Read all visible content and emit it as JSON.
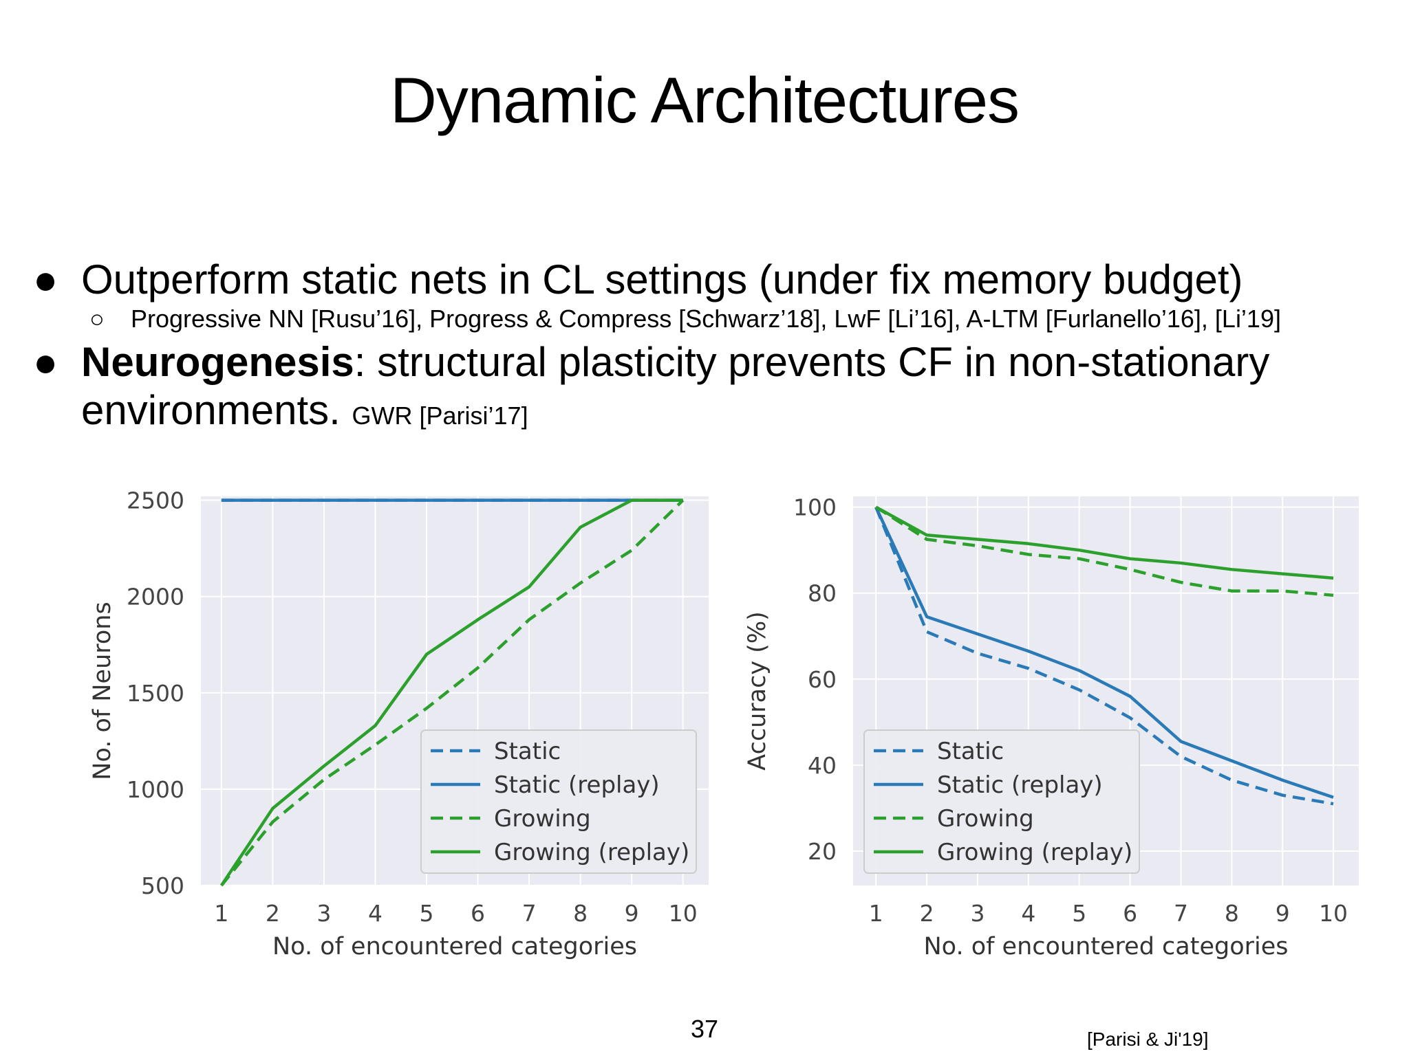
{
  "slide": {
    "title": "Dynamic Architectures",
    "bullets": [
      {
        "marker": "●",
        "text": "Outperform static nets in CL settings (under fix memory budget)"
      },
      {
        "marker": "●",
        "bold": "Neurogenesis",
        "text": ": structural plasticity prevents CF in non-stationary",
        "line2": "environments.",
        "line2_small": "GWR [Parisi’17]"
      }
    ],
    "sub_bullet": {
      "marker": "○",
      "text": "Progressive NN [Rusu’16], Progress & Compress [Schwarz’18], LwF [Li’16], A-LTM [Furlanello’16], [Li’19]"
    },
    "page_number": "37",
    "citation": "[Parisi & Ji'19]"
  },
  "colors": {
    "blue": "#2a7ab8",
    "green": "#2ca02c",
    "plot_bg": "#eaeaf2",
    "grid": "#ffffff"
  },
  "chart_data": [
    {
      "type": "line",
      "title": "",
      "xlabel": "No. of encountered categories",
      "ylabel": "No. of Neurons",
      "x": [
        1,
        2,
        3,
        4,
        5,
        6,
        7,
        8,
        9,
        10
      ],
      "xlim": [
        0.6,
        10.5
      ],
      "ylim": [
        500,
        2520
      ],
      "yticks": [
        500,
        1000,
        1500,
        2000,
        2500
      ],
      "legend": "lower-right",
      "series": [
        {
          "name": "Static",
          "style": "dashed",
          "color": "blue",
          "values": [
            2500,
            2500,
            2500,
            2500,
            2500,
            2500,
            2500,
            2500,
            2500,
            2500
          ]
        },
        {
          "name": "Static (replay)",
          "style": "solid",
          "color": "blue",
          "values": [
            2500,
            2500,
            2500,
            2500,
            2500,
            2500,
            2500,
            2500,
            2500,
            2500
          ]
        },
        {
          "name": "Growing",
          "style": "dashed",
          "color": "green",
          "values": [
            500,
            830,
            1050,
            1230,
            1420,
            1630,
            1880,
            2070,
            2240,
            2500
          ]
        },
        {
          "name": "Growing (replay)",
          "style": "solid",
          "color": "green",
          "values": [
            500,
            900,
            1120,
            1330,
            1700,
            1880,
            2050,
            2360,
            2500,
            2500
          ]
        }
      ]
    },
    {
      "type": "line",
      "title": "",
      "xlabel": "No. of encountered categories",
      "ylabel": "Accuracy (%)",
      "x": [
        1,
        2,
        3,
        4,
        5,
        6,
        7,
        8,
        9,
        10
      ],
      "xlim": [
        0.55,
        10.5
      ],
      "ylim": [
        12,
        102.5
      ],
      "yticks": [
        20,
        40,
        60,
        80,
        100
      ],
      "legend": "lower-left",
      "series": [
        {
          "name": "Static",
          "style": "dashed",
          "color": "blue",
          "values": [
            100,
            71,
            66,
            62.5,
            57.5,
            51,
            42,
            36.5,
            33,
            31
          ]
        },
        {
          "name": "Static (replay)",
          "style": "solid",
          "color": "blue",
          "values": [
            100,
            74.5,
            70.5,
            66.5,
            62,
            56,
            45.5,
            41,
            36.5,
            32.5
          ]
        },
        {
          "name": "Growing",
          "style": "dashed",
          "color": "green",
          "values": [
            100,
            92.5,
            91,
            89,
            88,
            85.5,
            82.5,
            80.5,
            80.5,
            79.5
          ]
        },
        {
          "name": "Growing (replay)",
          "style": "solid",
          "color": "green",
          "values": [
            100,
            93.5,
            92.5,
            91.5,
            90,
            88,
            87,
            85.5,
            84.5,
            83.5
          ]
        }
      ]
    }
  ]
}
